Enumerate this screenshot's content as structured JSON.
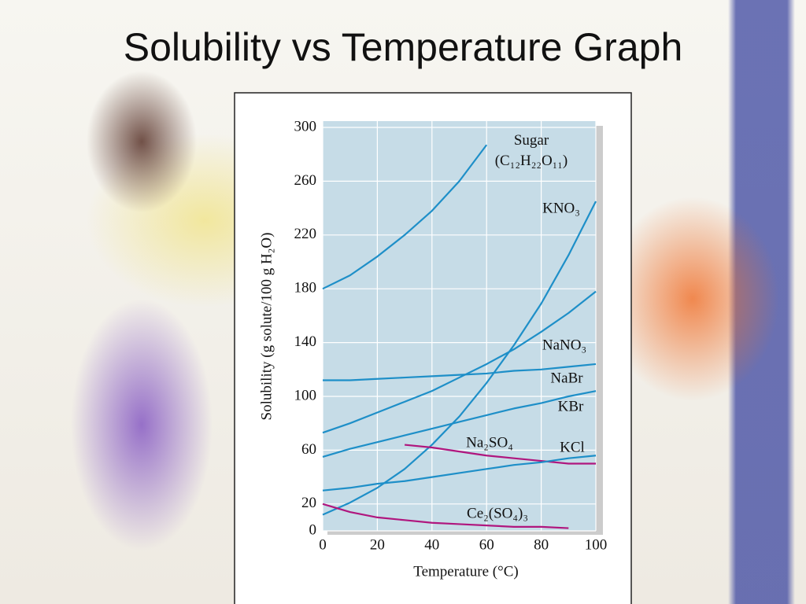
{
  "chart_data": {
    "type": "line",
    "title": "Solubility vs Temperature Graph",
    "x_label": "Temperature (°C)",
    "y_label": "Solubility (g solute/100 g H₂O)",
    "x": [
      0,
      10,
      20,
      30,
      40,
      50,
      60,
      70,
      80,
      90,
      100
    ],
    "xlim": [
      0,
      100
    ],
    "xticks": [
      0,
      20,
      40,
      60,
      80,
      100
    ],
    "ylim": [
      0,
      300
    ],
    "yticks": [
      0,
      20,
      60,
      100,
      140,
      180,
      220,
      260,
      300
    ],
    "grid": true,
    "series": [
      {
        "name": "Sugar (C₁₂H₂₂O₁₁)",
        "color": "#1e8fc8",
        "values": [
          180,
          190,
          204,
          220,
          238,
          260,
          287,
          null,
          null,
          null,
          null
        ]
      },
      {
        "name": "KNO₃",
        "color": "#1e8fc8",
        "values": [
          12,
          21,
          32,
          46,
          64,
          85,
          110,
          138,
          169,
          205,
          245
        ]
      },
      {
        "name": "NaNO₃",
        "color": "#1e8fc8",
        "values": [
          73,
          80,
          88,
          96,
          104,
          114,
          124,
          135,
          148,
          162,
          178
        ]
      },
      {
        "name": "NaBr",
        "color": "#1e8fc8",
        "values": [
          112,
          112,
          113,
          114,
          115,
          116,
          117,
          119,
          120,
          122,
          124
        ]
      },
      {
        "name": "KBr",
        "color": "#1e8fc8",
        "values": [
          55,
          61,
          66,
          71,
          76,
          81,
          86,
          91,
          95,
          100,
          104
        ]
      },
      {
        "name": "Na₂SO₄",
        "color": "#b0167e",
        "values": [
          null,
          null,
          null,
          64,
          62,
          59,
          56,
          54,
          52,
          50,
          50
        ]
      },
      {
        "name": "KCl",
        "color": "#1e8fc8",
        "values": [
          30,
          32,
          35,
          37,
          40,
          43,
          46,
          49,
          51,
          54,
          56
        ]
      },
      {
        "name": "Ce₂(SO₄)₃",
        "color": "#b0167e",
        "values": [
          20,
          14,
          10,
          8,
          6,
          5,
          4,
          3,
          3,
          2,
          null
        ]
      }
    ]
  }
}
